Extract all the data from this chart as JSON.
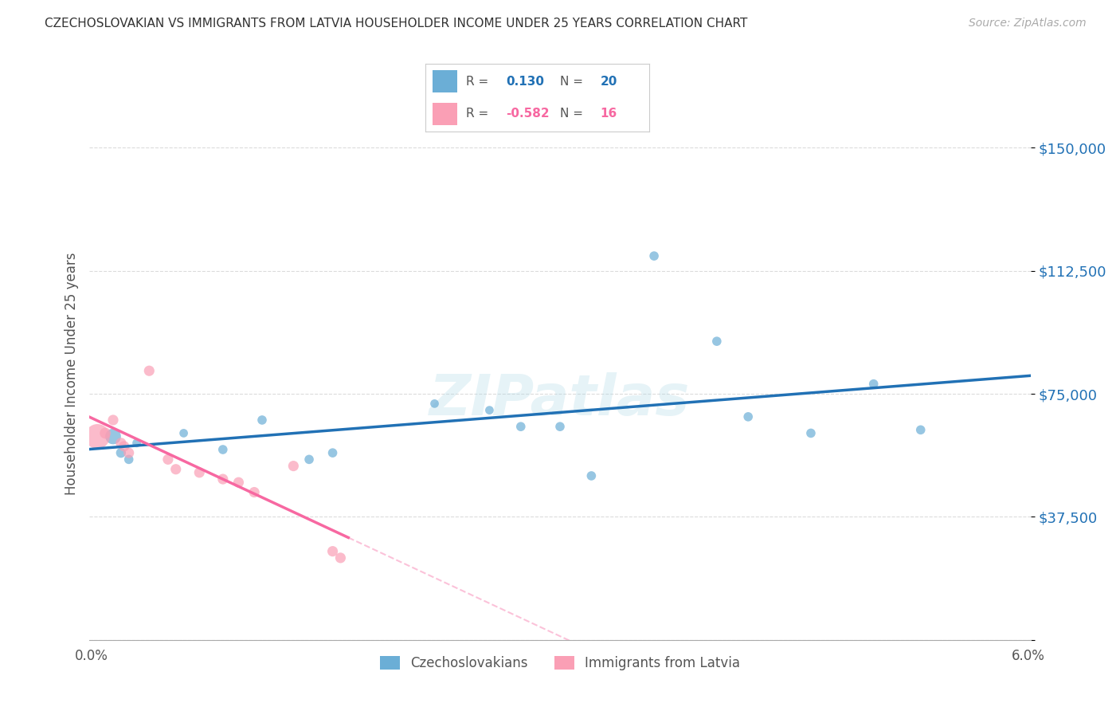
{
  "title": "CZECHOSLOVAKIAN VS IMMIGRANTS FROM LATVIA HOUSEHOLDER INCOME UNDER 25 YEARS CORRELATION CHART",
  "source": "Source: ZipAtlas.com",
  "ylabel": "Householder Income Under 25 years",
  "xlim": [
    0.0,
    6.0
  ],
  "ylim": [
    0,
    162500
  ],
  "yticks": [
    0,
    37500,
    75000,
    112500,
    150000
  ],
  "ytick_labels": [
    "",
    "$37,500",
    "$75,000",
    "$112,500",
    "$150,000"
  ],
  "legend_blue_R": "0.130",
  "legend_blue_N": "20",
  "legend_pink_R": "-0.582",
  "legend_pink_N": "16",
  "blue_color": "#6baed6",
  "pink_color": "#fa9fb5",
  "blue_line_color": "#2171b5",
  "pink_line_color": "#f768a1",
  "blue_points": [
    [
      0.15,
      62000,
      200
    ],
    [
      0.2,
      57000,
      80
    ],
    [
      0.25,
      55000,
      70
    ],
    [
      0.3,
      60000,
      60
    ],
    [
      0.6,
      63000,
      60
    ],
    [
      0.85,
      58000,
      70
    ],
    [
      1.1,
      67000,
      70
    ],
    [
      1.4,
      55000,
      70
    ],
    [
      1.55,
      57000,
      70
    ],
    [
      2.2,
      72000,
      60
    ],
    [
      2.55,
      70000,
      60
    ],
    [
      2.75,
      65000,
      70
    ],
    [
      3.0,
      65000,
      70
    ],
    [
      3.2,
      50000,
      70
    ],
    [
      3.6,
      117000,
      70
    ],
    [
      4.0,
      91000,
      70
    ],
    [
      4.2,
      68000,
      70
    ],
    [
      4.6,
      63000,
      70
    ],
    [
      5.0,
      78000,
      70
    ],
    [
      5.3,
      64000,
      70
    ]
  ],
  "pink_points": [
    [
      0.05,
      62000,
      500
    ],
    [
      0.1,
      63000,
      100
    ],
    [
      0.15,
      67000,
      90
    ],
    [
      0.2,
      60000,
      90
    ],
    [
      0.22,
      59000,
      90
    ],
    [
      0.25,
      57000,
      90
    ],
    [
      0.5,
      55000,
      90
    ],
    [
      0.55,
      52000,
      90
    ],
    [
      0.7,
      51000,
      90
    ],
    [
      0.85,
      49000,
      90
    ],
    [
      0.95,
      48000,
      90
    ],
    [
      1.05,
      45000,
      90
    ],
    [
      1.3,
      53000,
      90
    ],
    [
      1.55,
      27000,
      90
    ],
    [
      1.6,
      25000,
      90
    ],
    [
      0.38,
      82000,
      90
    ]
  ],
  "watermark": "ZIPatlas",
  "background_color": "#ffffff",
  "grid_color": "#cccccc"
}
